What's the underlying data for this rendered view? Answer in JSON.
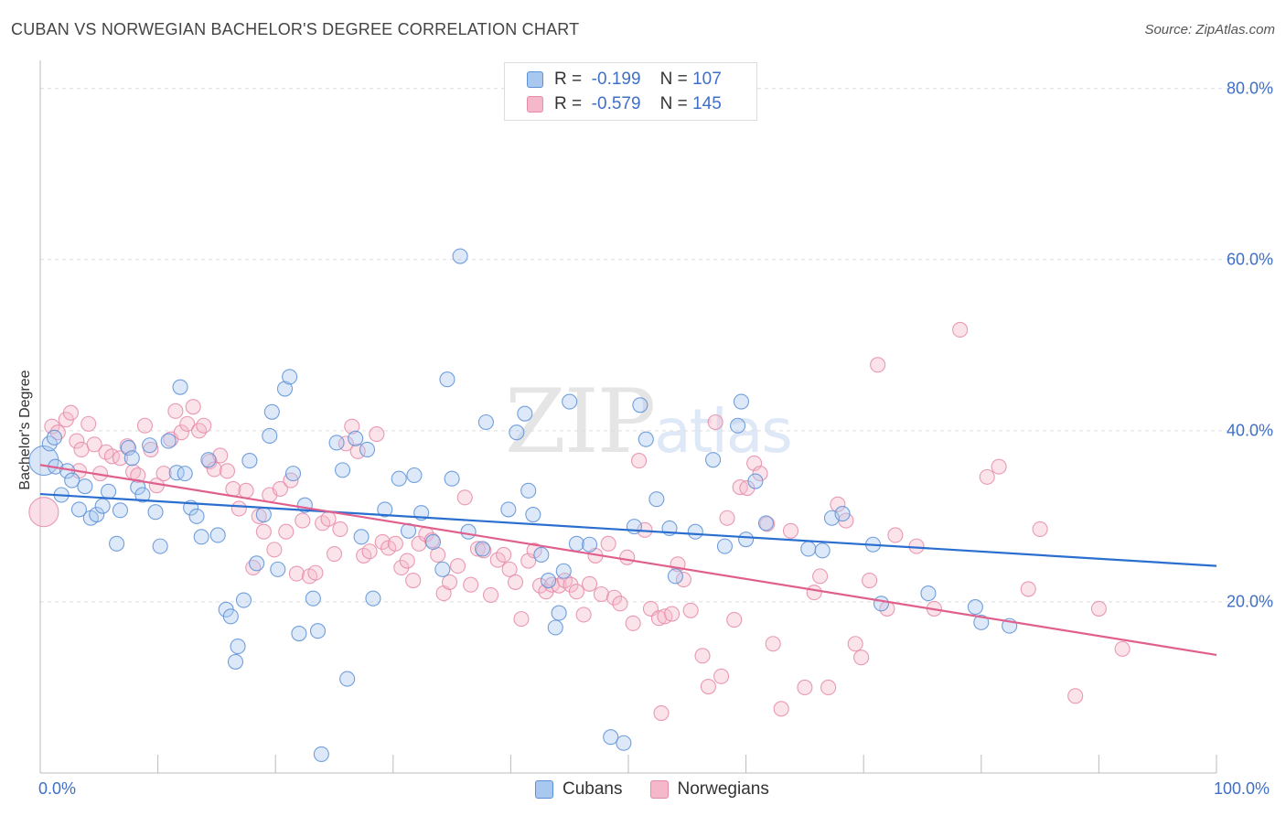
{
  "title": "CUBAN VS NORWEGIAN BACHELOR'S DEGREE CORRELATION CHART",
  "source": "Source: ZipAtlas.com",
  "watermark": {
    "zip": "ZIP",
    "atlas": "atlas"
  },
  "legend": {
    "rows": [
      {
        "r_label": "R =",
        "r_value": "-0.199",
        "n_label": "N =",
        "n_value": "107"
      },
      {
        "r_label": "R =",
        "r_value": "-0.579",
        "n_label": "N =",
        "n_value": "145"
      }
    ]
  },
  "bottom_legend": {
    "cubans": "Cubans",
    "norwegians": "Norwegians"
  },
  "colors": {
    "cuban_fill": "#a9c8f0",
    "cuban_stroke": "#5b8fd6",
    "cuban_line": "#2a6fcf",
    "norwegian_fill": "#f5b8cb",
    "norwegian_stroke": "#e58aa8",
    "norwegian_line": "#e0608d",
    "tick_text": "#3f6fc7",
    "grid": "#dddddd"
  },
  "chart_data": {
    "type": "scatter",
    "title": "CUBAN VS NORWEGIAN BACHELOR'S DEGREE CORRELATION CHART",
    "xlabel": "",
    "ylabel": "Bachelor's Degree",
    "xlim": [
      0,
      100
    ],
    "ylim": [
      0,
      82
    ],
    "x_tick_labels": [
      "0.0%",
      "100.0%"
    ],
    "y_ticks": [
      20,
      40,
      60,
      80
    ],
    "y_tick_labels": [
      "20.0%",
      "40.0%",
      "60.0%",
      "80.0%"
    ],
    "grid": true,
    "legend_position": "top-center",
    "series": [
      {
        "name": "Cubans",
        "r": -0.199,
        "n": 107,
        "trend": {
          "x": [
            0,
            100
          ],
          "y": [
            32.6,
            24.2
          ]
        },
        "points": [
          [
            0.3,
            36.5
          ],
          [
            0.8,
            38.5
          ],
          [
            1.2,
            39.2
          ],
          [
            1.3,
            35.8
          ],
          [
            1.8,
            32.5
          ],
          [
            2.3,
            35.3
          ],
          [
            2.7,
            34.2
          ],
          [
            3.3,
            30.8
          ],
          [
            3.8,
            33.5
          ],
          [
            4.3,
            29.8
          ],
          [
            4.8,
            30.2
          ],
          [
            5.3,
            31.2
          ],
          [
            5.8,
            32.9
          ],
          [
            6.5,
            26.8
          ],
          [
            6.8,
            30.7
          ],
          [
            7.5,
            38.0
          ],
          [
            7.8,
            36.8
          ],
          [
            8.3,
            33.4
          ],
          [
            8.7,
            32.5
          ],
          [
            9.3,
            38.3
          ],
          [
            9.8,
            30.5
          ],
          [
            10.2,
            26.5
          ],
          [
            10.9,
            38.8
          ],
          [
            11.6,
            35.1
          ],
          [
            11.9,
            45.1
          ],
          [
            12.3,
            35.0
          ],
          [
            12.8,
            31.0
          ],
          [
            13.3,
            30.0
          ],
          [
            13.7,
            27.6
          ],
          [
            14.3,
            36.6
          ],
          [
            15.1,
            27.8
          ],
          [
            15.8,
            19.1
          ],
          [
            16.2,
            18.3
          ],
          [
            16.6,
            13.0
          ],
          [
            16.8,
            14.8
          ],
          [
            17.3,
            20.2
          ],
          [
            17.8,
            36.5
          ],
          [
            18.4,
            24.5
          ],
          [
            19.0,
            30.2
          ],
          [
            19.5,
            39.4
          ],
          [
            19.7,
            42.2
          ],
          [
            20.2,
            23.8
          ],
          [
            20.8,
            44.9
          ],
          [
            21.2,
            46.3
          ],
          [
            21.5,
            35.0
          ],
          [
            22.0,
            16.3
          ],
          [
            22.5,
            31.3
          ],
          [
            23.2,
            20.4
          ],
          [
            23.6,
            16.6
          ],
          [
            25.2,
            38.6
          ],
          [
            25.7,
            35.4
          ],
          [
            26.1,
            11.0
          ],
          [
            26.8,
            39.1
          ],
          [
            27.3,
            27.6
          ],
          [
            27.8,
            37.8
          ],
          [
            28.3,
            20.4
          ],
          [
            29.3,
            30.8
          ],
          [
            30.5,
            34.4
          ],
          [
            31.3,
            28.3
          ],
          [
            31.8,
            34.8
          ],
          [
            32.4,
            30.4
          ],
          [
            33.4,
            27.0
          ],
          [
            34.2,
            23.8
          ],
          [
            34.6,
            46.0
          ],
          [
            35.0,
            34.4
          ],
          [
            35.7,
            60.4
          ],
          [
            36.4,
            28.2
          ],
          [
            37.6,
            26.2
          ],
          [
            37.9,
            41.0
          ],
          [
            39.8,
            30.8
          ],
          [
            40.5,
            39.8
          ],
          [
            41.2,
            42.0
          ],
          [
            41.5,
            33.0
          ],
          [
            41.9,
            30.2
          ],
          [
            42.6,
            25.5
          ],
          [
            43.2,
            22.5
          ],
          [
            43.8,
            17.0
          ],
          [
            44.1,
            18.7
          ],
          [
            44.5,
            23.6
          ],
          [
            45.0,
            43.4
          ],
          [
            45.6,
            26.8
          ],
          [
            46.7,
            26.7
          ],
          [
            48.5,
            4.2
          ],
          [
            49.6,
            3.5
          ],
          [
            50.5,
            28.8
          ],
          [
            51.0,
            43.0
          ],
          [
            51.5,
            39.0
          ],
          [
            52.4,
            32.0
          ],
          [
            53.5,
            28.6
          ],
          [
            54.0,
            23.0
          ],
          [
            55.7,
            28.2
          ],
          [
            57.2,
            36.6
          ],
          [
            58.2,
            26.5
          ],
          [
            59.3,
            40.6
          ],
          [
            59.6,
            43.4
          ],
          [
            60.0,
            27.3
          ],
          [
            60.8,
            34.1
          ],
          [
            61.7,
            29.2
          ],
          [
            65.3,
            26.2
          ],
          [
            66.5,
            26.0
          ],
          [
            67.3,
            29.8
          ],
          [
            68.2,
            30.3
          ],
          [
            70.8,
            26.7
          ],
          [
            71.5,
            19.8
          ],
          [
            75.5,
            21.0
          ],
          [
            79.5,
            19.4
          ],
          [
            80.0,
            17.6
          ],
          [
            82.4,
            17.2
          ],
          [
            23.9,
            2.2
          ]
        ]
      },
      {
        "name": "Norwegians",
        "r": -0.579,
        "n": 145,
        "trend": {
          "x": [
            0,
            100
          ],
          "y": [
            36.0,
            13.8
          ]
        },
        "points": [
          [
            0.3,
            30.5
          ],
          [
            1.0,
            40.5
          ],
          [
            1.5,
            39.8
          ],
          [
            2.2,
            41.3
          ],
          [
            2.6,
            42.1
          ],
          [
            3.1,
            38.8
          ],
          [
            3.3,
            35.3
          ],
          [
            3.5,
            37.8
          ],
          [
            4.1,
            40.8
          ],
          [
            4.6,
            38.4
          ],
          [
            5.1,
            35.0
          ],
          [
            5.6,
            37.5
          ],
          [
            6.1,
            37.0
          ],
          [
            6.8,
            36.8
          ],
          [
            7.4,
            38.2
          ],
          [
            7.9,
            35.2
          ],
          [
            8.3,
            34.8
          ],
          [
            8.9,
            40.6
          ],
          [
            9.4,
            37.8
          ],
          [
            9.9,
            33.6
          ],
          [
            10.5,
            35.0
          ],
          [
            11.1,
            39.0
          ],
          [
            11.5,
            42.3
          ],
          [
            12.0,
            39.8
          ],
          [
            12.5,
            40.8
          ],
          [
            13.0,
            42.8
          ],
          [
            13.5,
            40.0
          ],
          [
            13.9,
            40.6
          ],
          [
            14.4,
            36.4
          ],
          [
            14.8,
            35.5
          ],
          [
            15.3,
            37.1
          ],
          [
            15.9,
            35.3
          ],
          [
            16.4,
            33.2
          ],
          [
            16.9,
            30.9
          ],
          [
            17.5,
            33.0
          ],
          [
            18.1,
            24.0
          ],
          [
            18.6,
            30.0
          ],
          [
            19.0,
            28.2
          ],
          [
            19.5,
            32.5
          ],
          [
            19.9,
            26.1
          ],
          [
            20.4,
            33.2
          ],
          [
            20.9,
            28.2
          ],
          [
            21.3,
            34.2
          ],
          [
            21.8,
            23.3
          ],
          [
            22.3,
            29.5
          ],
          [
            22.9,
            23.0
          ],
          [
            23.4,
            23.4
          ],
          [
            24.0,
            29.2
          ],
          [
            24.5,
            29.7
          ],
          [
            25.0,
            25.6
          ],
          [
            25.5,
            28.5
          ],
          [
            26.0,
            38.5
          ],
          [
            26.5,
            40.5
          ],
          [
            27.0,
            37.6
          ],
          [
            27.5,
            25.4
          ],
          [
            28.0,
            25.9
          ],
          [
            28.6,
            39.6
          ],
          [
            29.1,
            27.0
          ],
          [
            29.6,
            26.3
          ],
          [
            30.2,
            26.8
          ],
          [
            30.7,
            24.0
          ],
          [
            31.2,
            24.8
          ],
          [
            31.7,
            22.5
          ],
          [
            32.2,
            26.8
          ],
          [
            32.8,
            27.9
          ],
          [
            33.3,
            27.2
          ],
          [
            33.8,
            25.5
          ],
          [
            34.3,
            21.0
          ],
          [
            34.8,
            22.3
          ],
          [
            35.5,
            24.2
          ],
          [
            36.1,
            32.2
          ],
          [
            36.6,
            22.0
          ],
          [
            37.2,
            26.2
          ],
          [
            37.7,
            26.0
          ],
          [
            38.3,
            20.8
          ],
          [
            38.9,
            24.9
          ],
          [
            39.4,
            25.5
          ],
          [
            39.9,
            23.8
          ],
          [
            40.4,
            22.3
          ],
          [
            40.9,
            18.0
          ],
          [
            41.5,
            24.8
          ],
          [
            42.0,
            26.0
          ],
          [
            42.5,
            21.9
          ],
          [
            43.0,
            21.2
          ],
          [
            43.5,
            22.0
          ],
          [
            44.1,
            21.9
          ],
          [
            44.6,
            22.5
          ],
          [
            45.1,
            22.0
          ],
          [
            45.6,
            21.2
          ],
          [
            46.2,
            18.5
          ],
          [
            46.7,
            22.1
          ],
          [
            47.2,
            25.4
          ],
          [
            47.7,
            20.9
          ],
          [
            48.3,
            26.8
          ],
          [
            48.8,
            20.5
          ],
          [
            49.3,
            19.8
          ],
          [
            49.9,
            25.2
          ],
          [
            50.4,
            17.5
          ],
          [
            50.9,
            36.5
          ],
          [
            51.4,
            28.4
          ],
          [
            51.9,
            19.2
          ],
          [
            52.6,
            18.1
          ],
          [
            53.1,
            18.3
          ],
          [
            53.7,
            18.6
          ],
          [
            54.2,
            24.4
          ],
          [
            54.7,
            22.6
          ],
          [
            55.3,
            19.0
          ],
          [
            56.3,
            13.7
          ],
          [
            56.8,
            10.1
          ],
          [
            57.4,
            41.0
          ],
          [
            57.9,
            11.3
          ],
          [
            58.4,
            29.8
          ],
          [
            59.0,
            17.9
          ],
          [
            59.5,
            33.4
          ],
          [
            60.1,
            33.3
          ],
          [
            60.7,
            36.2
          ],
          [
            61.2,
            35.0
          ],
          [
            61.8,
            29.1
          ],
          [
            62.3,
            15.1
          ],
          [
            63.0,
            7.5
          ],
          [
            63.8,
            28.3
          ],
          [
            65.0,
            10.0
          ],
          [
            65.8,
            21.1
          ],
          [
            66.3,
            23.0
          ],
          [
            67.0,
            10.0
          ],
          [
            67.8,
            31.4
          ],
          [
            68.5,
            29.5
          ],
          [
            69.3,
            15.1
          ],
          [
            69.8,
            13.5
          ],
          [
            70.5,
            22.5
          ],
          [
            71.2,
            47.7
          ],
          [
            72.0,
            19.2
          ],
          [
            72.7,
            27.8
          ],
          [
            74.5,
            26.5
          ],
          [
            76.0,
            19.2
          ],
          [
            78.2,
            51.8
          ],
          [
            80.5,
            34.6
          ],
          [
            81.5,
            35.8
          ],
          [
            84.0,
            21.5
          ],
          [
            85.0,
            28.5
          ],
          [
            88.0,
            9.0
          ],
          [
            90.0,
            19.2
          ],
          [
            92.0,
            14.5
          ],
          [
            52.8,
            7.0
          ]
        ]
      }
    ]
  }
}
